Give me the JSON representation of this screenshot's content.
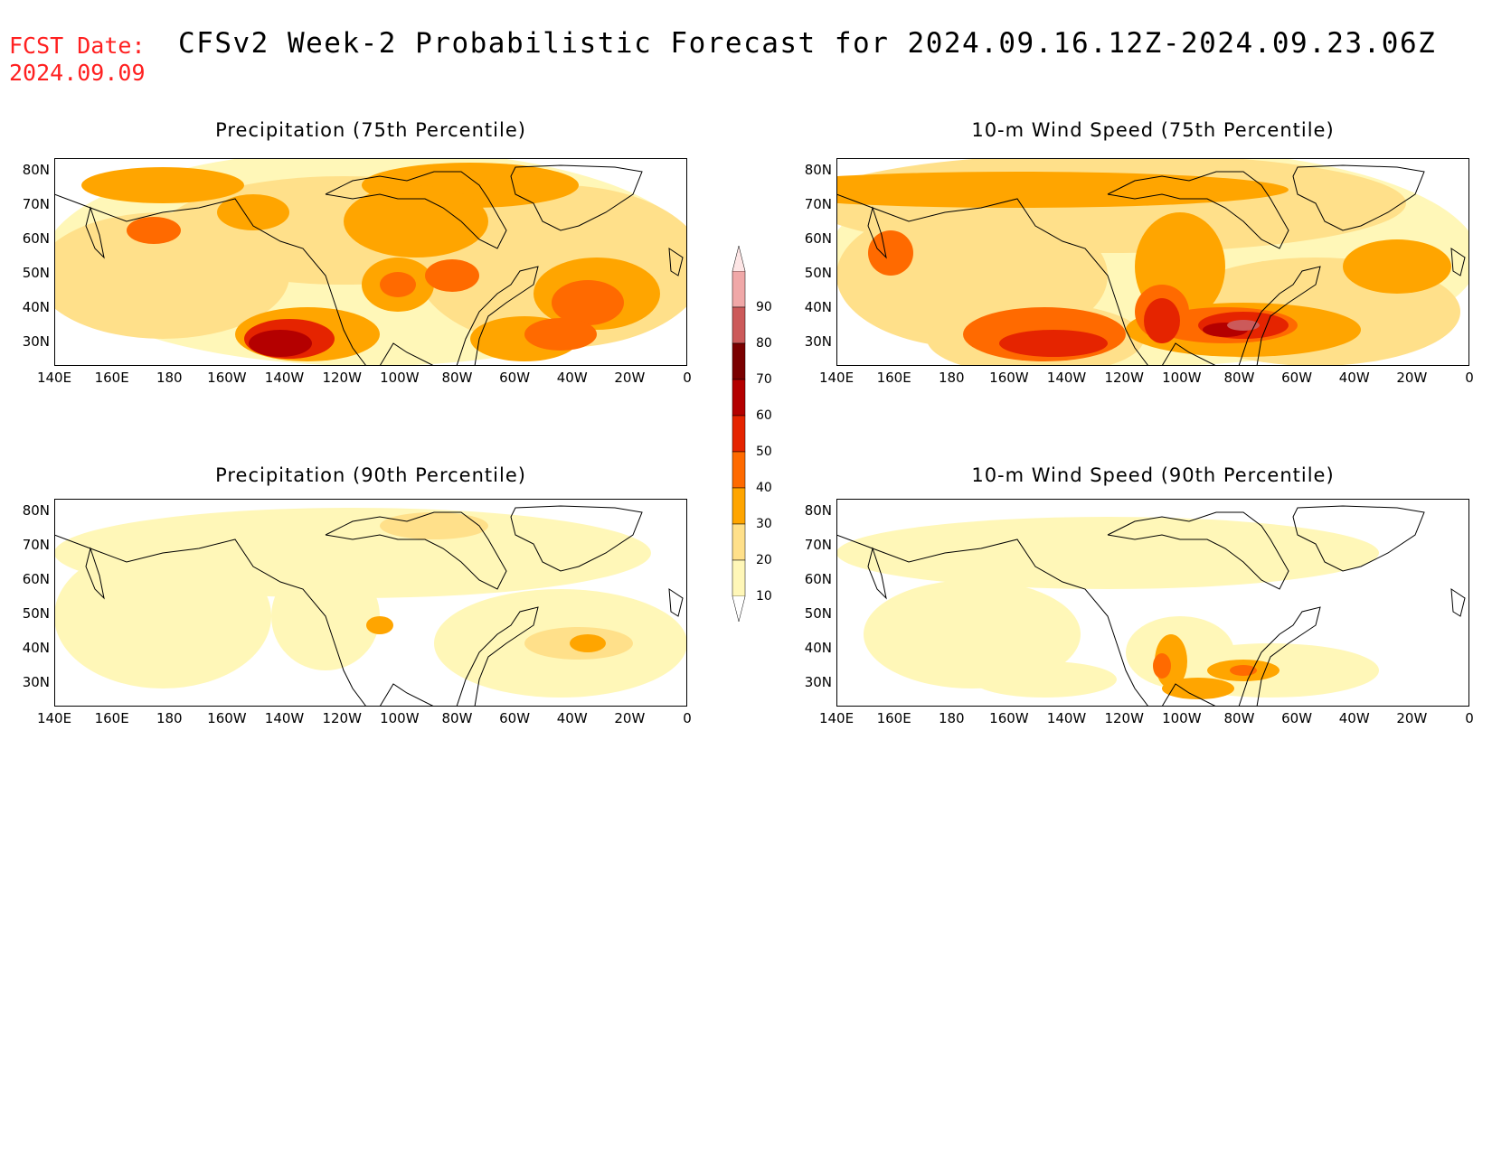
{
  "header": {
    "fcst_label": "FCST Date:",
    "fcst_date": "2024.09.09",
    "title": "CFSv2 Week-2 Probabilistic Forecast for 2024.09.16.12Z-2024.09.23.06Z"
  },
  "panels": [
    {
      "title": "Precipitation (75th Percentile)"
    },
    {
      "title": "10-m Wind Speed (75th Percentile)"
    },
    {
      "title": "Precipitation (90th Percentile)"
    },
    {
      "title": "10-m Wind Speed (90th Percentile)"
    }
  ],
  "axes": {
    "lat_ticks": [
      "80N",
      "70N",
      "60N",
      "50N",
      "40N",
      "30N"
    ],
    "lon_ticks": [
      "140E",
      "160E",
      "180",
      "160W",
      "140W",
      "120W",
      "100W",
      "80W",
      "60W",
      "40W",
      "20W",
      "0"
    ]
  },
  "colorbar": {
    "levels": [
      "10",
      "20",
      "30",
      "40",
      "50",
      "60",
      "70",
      "80",
      "90"
    ],
    "colors": [
      "#fff7b8",
      "#ffe08a",
      "#ffa500",
      "#ff6a00",
      "#e52400",
      "#b40000",
      "#7a0000",
      "#cc5a5a",
      "#f0a8a8"
    ]
  }
}
